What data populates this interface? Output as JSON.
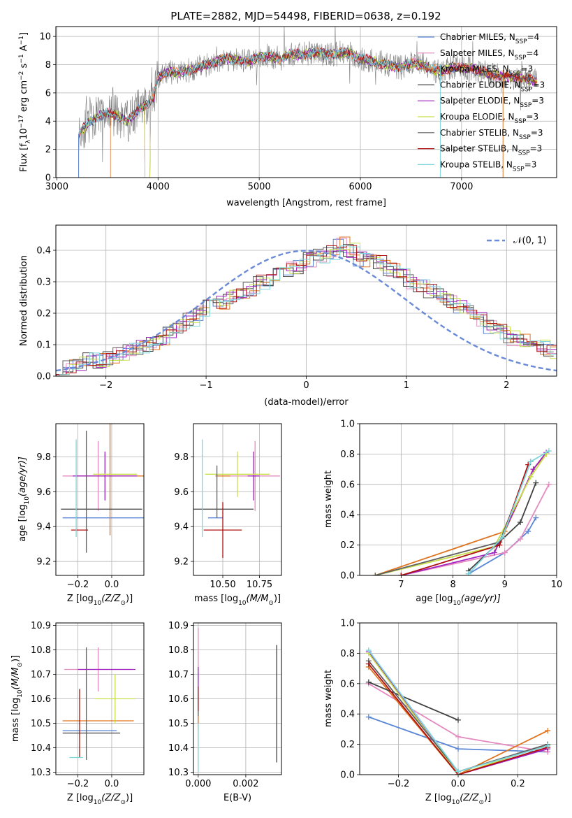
{
  "figure": {
    "title": "PLATE=2882, MJD=54498, FIBERID=0638, z=0.192"
  },
  "colors": {
    "chabrier_miles": "#5a86d6",
    "salpeter_miles": "#e58ac0",
    "kroupa_miles": "#e0731f",
    "chabrier_elodie": "#404040",
    "salpeter_elodie": "#a020c0",
    "kroupa_elodie": "#c8e04a",
    "chabrier_stelib": "#606060",
    "salpeter_stelib": "#b01010",
    "kroupa_stelib": "#7dd6dc",
    "data_spectrum": "#808080",
    "normal_curve": "#6a8ad8",
    "grid": "#b0b0b0"
  },
  "chart_data": [
    {
      "id": "spectrum",
      "type": "line",
      "xlabel": "wavelength [Angstrom, rest frame]",
      "ylabel_main": "Flux [f",
      "ylabel_sub": "λ",
      "ylabel_mid": "10",
      "ylabel_sup": "−17",
      "ylabel_rest": " erg cm",
      "ylabel_sup2": "−2",
      "ylabel_rest2": " s",
      "ylabel_sup3": "−1",
      "ylabel_rest3": " A",
      "ylabel_sup4": "−1",
      "ylabel_end": "]",
      "xlim": [
        2990,
        7940
      ],
      "ylim": [
        0,
        10.7
      ],
      "xticks": [
        "3000",
        "4000",
        "5000",
        "6000",
        "7000"
      ],
      "xtick_values": [
        3000,
        4000,
        5000,
        6000,
        7000
      ],
      "yticks": [
        "0",
        "2",
        "4",
        "6",
        "8",
        "10"
      ],
      "ytick_values": [
        0,
        2,
        4,
        6,
        8,
        10
      ],
      "continuum": {
        "x": [
          3215,
          3300,
          3400,
          3500,
          3600,
          3700,
          3800,
          3900,
          3950,
          4000,
          4100,
          4200,
          4300,
          4400,
          4500,
          4600,
          4700,
          4800,
          4900,
          5000,
          5100,
          5200,
          5300,
          5400,
          5500,
          5600,
          5700,
          5800,
          5900,
          6000,
          6100,
          6200,
          6300,
          6400,
          6500,
          6600,
          6700,
          6800,
          6900,
          7000,
          7100,
          7200,
          7300,
          7400,
          7500,
          7600,
          7700,
          7750
        ],
        "y": [
          3.1,
          3.8,
          4.3,
          4.6,
          4.3,
          4.0,
          4.8,
          5.3,
          5.5,
          7.1,
          7.5,
          7.4,
          7.6,
          7.8,
          8.0,
          8.3,
          8.4,
          8.3,
          8.2,
          8.6,
          8.6,
          8.4,
          8.8,
          8.7,
          8.8,
          8.8,
          8.7,
          8.8,
          8.8,
          8.4,
          8.3,
          8.1,
          7.9,
          7.8,
          8.1,
          8.0,
          7.7,
          7.5,
          7.8,
          7.8,
          7.7,
          7.5,
          7.3,
          7.2,
          7.1,
          7.1,
          6.9,
          6.8
        ]
      },
      "legend": [
        {
          "name": "Chabrier MILES, N",
          "sub": "SSP",
          "val": "=4",
          "color": "#5a86d6"
        },
        {
          "name": "Salpeter MILES, N",
          "sub": "SSP",
          "val": "=4",
          "color": "#e58ac0"
        },
        {
          "name": "Kroupa MILES, N",
          "sub": "SSP",
          "val": "=3",
          "color": "#e0731f"
        },
        {
          "name": "Chabrier ELODIE, N",
          "sub": "SSP",
          "val": "=3",
          "color": "#404040"
        },
        {
          "name": "Salpeter ELODIE, N",
          "sub": "SSP",
          "val": "=3",
          "color": "#a020c0"
        },
        {
          "name": "Kroupa ELODIE, N",
          "sub": "SSP",
          "val": "=3",
          "color": "#c8e04a"
        },
        {
          "name": "Chabrier STELIB, N",
          "sub": "SSP",
          "val": "=3",
          "color": "#606060"
        },
        {
          "name": "Salpeter STELIB, N",
          "sub": "SSP",
          "val": "=3",
          "color": "#b01010"
        },
        {
          "name": "Kroupa STELIB, N",
          "sub": "SSP",
          "val": "=3",
          "color": "#7dd6dc"
        }
      ]
    },
    {
      "id": "residuals",
      "type": "histogram",
      "xlabel": "(data-model)/error",
      "ylabel": "Normed distribution",
      "xlim": [
        -2.5,
        2.5
      ],
      "ylim": [
        0,
        0.48
      ],
      "xticks": [
        "−2",
        "−1",
        "0",
        "1",
        "2"
      ],
      "xtick_values": [
        -2,
        -1,
        0,
        1,
        2
      ],
      "yticks": [
        "0.0",
        "0.1",
        "0.2",
        "0.3",
        "0.4"
      ],
      "ytick_values": [
        0,
        0.1,
        0.2,
        0.3,
        0.4
      ],
      "legend": "𝒩(0, 1)",
      "bin_width": 0.1,
      "bins_start": -2.5,
      "base_profile": [
        0.02,
        0.03,
        0.04,
        0.05,
        0.05,
        0.06,
        0.07,
        0.08,
        0.09,
        0.1,
        0.12,
        0.14,
        0.16,
        0.18,
        0.2,
        0.22,
        0.23,
        0.25,
        0.27,
        0.28,
        0.3,
        0.31,
        0.33,
        0.34,
        0.35,
        0.37,
        0.38,
        0.39,
        0.42,
        0.4,
        0.37,
        0.38,
        0.36,
        0.34,
        0.32,
        0.3,
        0.29,
        0.27,
        0.26,
        0.24,
        0.22,
        0.2,
        0.18,
        0.16,
        0.14,
        0.12,
        0.11,
        0.1,
        0.09,
        0.08
      ]
    },
    {
      "id": "z_vs_age",
      "type": "errorbar",
      "xlabel": "Z [log",
      "xlabel_sub": "10",
      "xlabel_rest": "(Z/Z",
      "xlabel_sub2": "⊙",
      "xlabel_end": ")]",
      "ylabel": "age  [log",
      "ylabel_sub": "10",
      "ylabel_rest": "(age/yr)]",
      "xlim": [
        -0.33,
        0.19
      ],
      "ylim": [
        9.12,
        9.99
      ],
      "xticks": [
        "−0.2",
        "0.0"
      ],
      "xtick_values": [
        -0.2,
        0.0
      ],
      "yticks": [
        "9.2",
        "9.4",
        "9.6",
        "9.8"
      ],
      "ytick_values": [
        9.2,
        9.4,
        9.6,
        9.8
      ],
      "points": [
        {
          "x": -0.03,
          "y": 9.45,
          "xerr": 0.26,
          "yerr": 0.0,
          "color": "#5a86d6"
        },
        {
          "x": -0.08,
          "y": 9.69,
          "xerr": 0.21,
          "yerr": 0.2,
          "color": "#e58ac0"
        },
        {
          "x": -0.01,
          "y": 9.69,
          "xerr": 0.2,
          "yerr": 0.34,
          "color": "#e0731f"
        },
        {
          "x": -0.06,
          "y": 9.5,
          "xerr": 0.24,
          "yerr": 0.0,
          "color": "#404040"
        },
        {
          "x": -0.04,
          "y": 9.69,
          "xerr": 0.19,
          "yerr": 0.14,
          "color": "#a020c0"
        },
        {
          "x": 0.02,
          "y": 9.7,
          "xerr": 0.13,
          "yerr": 0.0,
          "color": "#c8e04a"
        },
        {
          "x": -0.15,
          "y": 9.6,
          "xerr": 0.0,
          "yerr": 0.35,
          "color": "#606060"
        },
        {
          "x": -0.19,
          "y": 9.38,
          "xerr": 0.05,
          "yerr": 0.0,
          "color": "#b01010"
        },
        {
          "x": -0.21,
          "y": 9.62,
          "xerr": 0.0,
          "yerr": 0.28,
          "color": "#7dd6dc"
        }
      ]
    },
    {
      "id": "mass_vs_age",
      "type": "errorbar",
      "xlabel": "mass [log",
      "xlabel_sub": "10",
      "xlabel_rest": "(M/M",
      "xlabel_sub2": "⊙",
      "xlabel_end": ")]",
      "xlim": [
        10.3,
        10.9
      ],
      "ylim": [
        9.12,
        9.99
      ],
      "xticks": [
        "10.50",
        "10.75"
      ],
      "xtick_values": [
        10.5,
        10.75
      ],
      "yticks": [
        "9.2",
        "9.4",
        "9.6",
        "9.8"
      ],
      "ytick_values": [
        9.2,
        9.4,
        9.6,
        9.8
      ],
      "points": [
        {
          "x": 10.45,
          "y": 9.45,
          "xerr": 0.05,
          "yerr": 0.0,
          "color": "#5a86d6"
        },
        {
          "x": 10.72,
          "y": 9.69,
          "xerr": 0.17,
          "yerr": 0.2,
          "color": "#e58ac0"
        },
        {
          "x": 10.5,
          "y": 9.69,
          "xerr": 0.05,
          "yerr": 0.0,
          "color": "#e0731f"
        },
        {
          "x": 10.46,
          "y": 9.5,
          "xerr": 0.25,
          "yerr": 0.0,
          "color": "#404040"
        },
        {
          "x": 10.71,
          "y": 9.69,
          "xerr": 0.04,
          "yerr": 0.14,
          "color": "#a020c0"
        },
        {
          "x": 10.6,
          "y": 9.7,
          "xerr": 0.22,
          "yerr": 0.13,
          "color": "#c8e04a"
        },
        {
          "x": 10.46,
          "y": 9.6,
          "xerr": 0.0,
          "yerr": 0.15,
          "color": "#606060"
        },
        {
          "x": 10.5,
          "y": 9.38,
          "xerr": 0.13,
          "yerr": 0.16,
          "color": "#b01010"
        },
        {
          "x": 10.36,
          "y": 9.62,
          "xerr": 0.0,
          "yerr": 0.28,
          "color": "#7dd6dc"
        }
      ]
    },
    {
      "id": "age_vs_massweight",
      "type": "line",
      "xlabel": "age  [log",
      "xlabel_sub": "10",
      "xlabel_rest": "(age/yr)]",
      "ylabel": "mass weight",
      "xlim": [
        6.2,
        10.0
      ],
      "ylim": [
        0,
        1.0
      ],
      "xticks": [
        "7",
        "8",
        "9",
        "10"
      ],
      "xtick_values": [
        7,
        8,
        9,
        10
      ],
      "yticks": [
        "0.0",
        "0.2",
        "0.4",
        "0.6",
        "0.8",
        "1.0"
      ],
      "ytick_values": [
        0,
        0.2,
        0.4,
        0.6,
        0.8,
        1.0
      ],
      "series": [
        {
          "color": "#5a86d6",
          "x": [
            8.3,
            9.0,
            9.45,
            9.6
          ],
          "y": [
            0.01,
            0.15,
            0.29,
            0.38
          ]
        },
        {
          "color": "#e58ac0",
          "x": [
            7.0,
            9.0,
            9.3,
            9.85
          ],
          "y": [
            0.0,
            0.15,
            0.24,
            0.6
          ]
        },
        {
          "color": "#e0731f",
          "x": [
            6.5,
            9.0,
            9.55,
            9.8
          ],
          "y": [
            0.0,
            0.29,
            0.7,
            0.8
          ]
        },
        {
          "color": "#404040",
          "x": [
            8.3,
            9.3,
            9.6
          ],
          "y": [
            0.03,
            0.35,
            0.61
          ]
        },
        {
          "color": "#a020c0",
          "x": [
            7.0,
            8.8,
            9.55,
            9.8
          ],
          "y": [
            0.0,
            0.15,
            0.7,
            0.81
          ]
        },
        {
          "color": "#c8e04a",
          "x": [
            6.5,
            8.8,
            9.5,
            9.8
          ],
          "y": [
            0.0,
            0.19,
            0.65,
            0.8
          ]
        },
        {
          "color": "#606060",
          "x": [
            6.5,
            8.9,
            9.5
          ],
          "y": [
            0.0,
            0.22,
            0.75
          ]
        },
        {
          "color": "#b01010",
          "x": [
            7.0,
            8.9,
            9.45
          ],
          "y": [
            0.0,
            0.2,
            0.73
          ]
        },
        {
          "color": "#7dd6dc",
          "x": [
            8.3,
            8.95,
            9.5,
            9.85
          ],
          "y": [
            0.01,
            0.25,
            0.75,
            0.82
          ]
        }
      ]
    },
    {
      "id": "z_vs_mass",
      "type": "errorbar",
      "xlabel": "Z [log",
      "xlabel_sub": "10",
      "xlabel_rest": "(Z/Z",
      "xlabel_sub2": "⊙",
      "xlabel_end": ")]",
      "ylabel": "mass [log",
      "ylabel_sub": "10",
      "ylabel_rest": "(M/M",
      "ylabel_sub2": "⊙",
      "ylabel_end": ")]",
      "xlim": [
        -0.33,
        0.19
      ],
      "ylim": [
        10.29,
        10.91
      ],
      "xticks": [
        "−0.2",
        "0.0"
      ],
      "xtick_values": [
        -0.2,
        0.0
      ],
      "yticks": [
        "10.3",
        "10.4",
        "10.5",
        "10.6",
        "10.7",
        "10.8",
        "10.9"
      ],
      "ytick_values": [
        10.3,
        10.4,
        10.5,
        10.6,
        10.7,
        10.8,
        10.9
      ],
      "points": [
        {
          "x": -0.13,
          "y": 10.47,
          "xerr": 0.16,
          "yerr": 0.0,
          "color": "#5a86d6"
        },
        {
          "x": -0.08,
          "y": 10.72,
          "xerr": 0.2,
          "yerr": 0.09,
          "color": "#e58ac0"
        },
        {
          "x": -0.08,
          "y": 10.51,
          "xerr": 0.21,
          "yerr": 0.0,
          "color": "#e0731f"
        },
        {
          "x": -0.12,
          "y": 10.46,
          "xerr": 0.17,
          "yerr": 0.0,
          "color": "#404040"
        },
        {
          "x": -0.03,
          "y": 10.72,
          "xerr": 0.17,
          "yerr": 0.0,
          "color": "#a020c0"
        },
        {
          "x": 0.02,
          "y": 10.6,
          "xerr": 0.12,
          "yerr": 0.1,
          "color": "#c8e04a"
        },
        {
          "x": -0.15,
          "y": 10.58,
          "xerr": 0.0,
          "yerr": 0.23,
          "color": "#606060"
        },
        {
          "x": -0.19,
          "y": 10.5,
          "xerr": 0.0,
          "yerr": 0.14,
          "color": "#b01010"
        },
        {
          "x": -0.21,
          "y": 10.36,
          "xerr": 0.04,
          "yerr": 0.0,
          "color": "#7dd6dc"
        }
      ]
    },
    {
      "id": "ebv_vs_mass",
      "type": "errorbar",
      "xlabel": "E(B-V)",
      "xlim": [
        -0.0002,
        0.0035
      ],
      "ylim": [
        10.29,
        10.91
      ],
      "xticks": [
        "0.000",
        "0.002"
      ],
      "xtick_values": [
        0.0,
        0.002
      ],
      "yticks": [
        "10.3",
        "10.4",
        "10.5",
        "10.6",
        "10.7",
        "10.8",
        "10.9"
      ],
      "ytick_values": [
        10.3,
        10.4,
        10.5,
        10.6,
        10.7,
        10.8,
        10.9
      ],
      "points": [
        {
          "x": 0.0,
          "y": 10.47,
          "xerr": 0.0,
          "yerr": 0.06,
          "color": "#5a86d6"
        },
        {
          "x": 0.0,
          "y": 10.72,
          "xerr": 0.0,
          "yerr": 0.17,
          "color": "#e58ac0"
        },
        {
          "x": 0.0,
          "y": 10.51,
          "xerr": 0.0,
          "yerr": 0.05,
          "color": "#e0731f"
        },
        {
          "x": 0.0033,
          "y": 10.58,
          "xerr": 0.0,
          "yerr": 0.24,
          "color": "#404040"
        },
        {
          "x": 0.0,
          "y": 10.65,
          "xerr": 0.0,
          "yerr": 0.08,
          "color": "#a020c0"
        },
        {
          "x": 0.0,
          "y": 10.4,
          "xerr": 0.0,
          "yerr": 0.08,
          "color": "#c8e04a"
        },
        {
          "x": 0.0,
          "y": 10.58,
          "xerr": 0.0,
          "yerr": 0.05,
          "color": "#606060"
        },
        {
          "x": 0.0,
          "y": 10.6,
          "xerr": 0.0,
          "yerr": 0.05,
          "color": "#b01010"
        },
        {
          "x": 0.0,
          "y": 10.4,
          "xerr": 0.0,
          "yerr": 0.1,
          "color": "#7dd6dc"
        }
      ]
    },
    {
      "id": "z_vs_massweight",
      "type": "line",
      "xlabel": "Z [log",
      "xlabel_sub": "10",
      "xlabel_rest": "(Z/Z",
      "xlabel_sub2": "⊙",
      "xlabel_end": ")]",
      "ylabel": "mass weight",
      "xlim": [
        -0.33,
        0.33
      ],
      "ylim": [
        0,
        1.0
      ],
      "xticks": [
        "−0.2",
        "0.0",
        "0.2"
      ],
      "xtick_values": [
        -0.2,
        0.0,
        0.2
      ],
      "yticks": [
        "0.0",
        "0.2",
        "0.4",
        "0.6",
        "0.8",
        "1.0"
      ],
      "ytick_values": [
        0,
        0.2,
        0.4,
        0.6,
        0.8,
        1.0
      ],
      "series": [
        {
          "color": "#5a86d6",
          "x": [
            -0.3,
            0.0,
            0.3
          ],
          "y": [
            0.38,
            0.17,
            0.15
          ]
        },
        {
          "color": "#e58ac0",
          "x": [
            -0.3,
            0.0,
            0.3
          ],
          "y": [
            0.6,
            0.25,
            0.15
          ]
        },
        {
          "color": "#e0731f",
          "x": [
            -0.3,
            0.0,
            0.3
          ],
          "y": [
            0.71,
            0.0,
            0.29
          ]
        },
        {
          "color": "#404040",
          "x": [
            -0.3,
            0.0
          ],
          "y": [
            0.61,
            0.36
          ]
        },
        {
          "color": "#a020c0",
          "x": [
            -0.3,
            0.0,
            0.3
          ],
          "y": [
            0.81,
            0.0,
            0.17
          ]
        },
        {
          "color": "#c8e04a",
          "x": [
            -0.3,
            0.0,
            0.3
          ],
          "y": [
            0.8,
            0.0,
            0.2
          ]
        },
        {
          "color": "#606060",
          "x": [
            -0.3,
            0.0,
            0.3
          ],
          "y": [
            0.75,
            0.02,
            0.2
          ]
        },
        {
          "color": "#b01010",
          "x": [
            -0.3,
            0.0,
            0.3
          ],
          "y": [
            0.73,
            0.0,
            0.18
          ]
        },
        {
          "color": "#7dd6dc",
          "x": [
            -0.3,
            0.0,
            0.3
          ],
          "y": [
            0.82,
            0.02,
            0.19
          ]
        }
      ]
    }
  ]
}
